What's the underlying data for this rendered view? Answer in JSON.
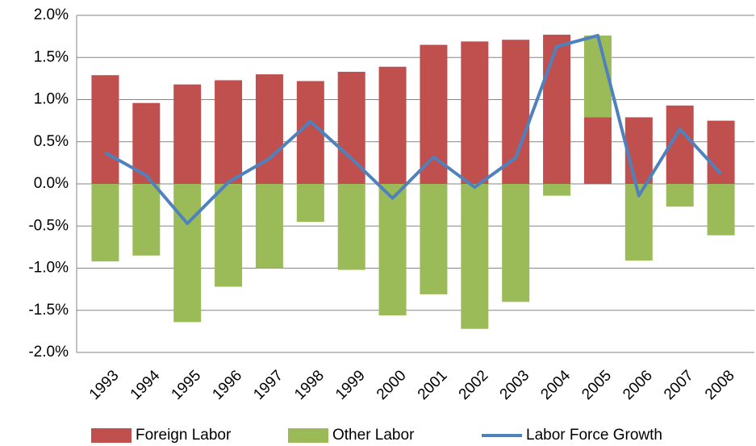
{
  "chart_data": {
    "type": "stacked-bar-line",
    "categories": [
      "1993",
      "1994",
      "1995",
      "1996",
      "1997",
      "1998",
      "1999",
      "2000",
      "2001",
      "2002",
      "2003",
      "2004",
      "2005",
      "2006",
      "2007",
      "2008"
    ],
    "series": [
      {
        "name": "Foreign Labor",
        "type": "bar",
        "color": "#c0504d",
        "values": [
          1.29,
          0.96,
          1.18,
          1.23,
          1.3,
          1.22,
          1.33,
          1.39,
          1.65,
          1.69,
          1.71,
          1.77,
          0.79,
          0.79,
          0.93,
          0.75
        ]
      },
      {
        "name": "Other Labor",
        "type": "bar",
        "color": "#9bbb59",
        "values": [
          -0.92,
          -0.85,
          -1.64,
          -1.22,
          -1.0,
          -0.45,
          -1.02,
          -1.56,
          -1.31,
          -1.72,
          -1.4,
          -0.14,
          0.97,
          -0.91,
          -0.27,
          -0.61
        ]
      },
      {
        "name": "Labor Force Growth",
        "type": "line",
        "color": "#4f81bd",
        "values": [
          0.37,
          0.1,
          -0.47,
          0.02,
          0.3,
          0.74,
          0.3,
          -0.17,
          0.32,
          -0.04,
          0.31,
          1.63,
          1.76,
          -0.14,
          0.65,
          0.12
        ]
      }
    ],
    "ylim": [
      -2.0,
      2.0
    ],
    "yticks": [
      {
        "value": -2.0,
        "label": "-2.0%"
      },
      {
        "value": -1.5,
        "label": "-1.5%"
      },
      {
        "value": -1.0,
        "label": "-1.0%"
      },
      {
        "value": -0.5,
        "label": "-0.5%"
      },
      {
        "value": 0.0,
        "label": "0.0%"
      },
      {
        "value": 0.5,
        "label": "0.5%"
      },
      {
        "value": 1.0,
        "label": "1.0%"
      },
      {
        "value": 1.5,
        "label": "1.5%"
      },
      {
        "value": 2.0,
        "label": "2.0%"
      }
    ],
    "grid": true,
    "legend": "bottom"
  }
}
